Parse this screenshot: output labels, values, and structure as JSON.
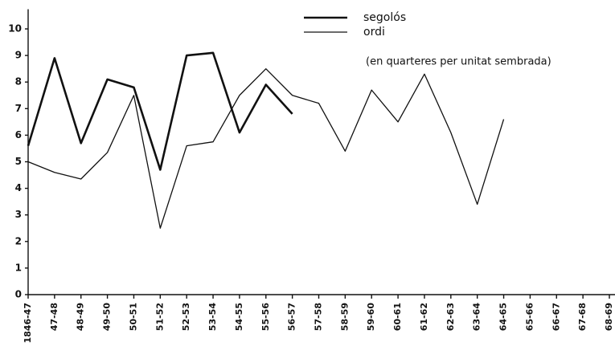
{
  "chart_data": {
    "type": "line",
    "annotation": "(en quarteres per unitat sembrada)",
    "categories": [
      "1846-47",
      "47-48",
      "48-49",
      "49-50",
      "50-51",
      "51-52",
      "52-53",
      "53-54",
      "54-55",
      "55-56",
      "56-57",
      "57-58",
      "58-59",
      "59-60",
      "60-61",
      "61-62",
      "62-63",
      "63-64",
      "64-65",
      "65-66",
      "66-67",
      "67-68",
      "68-69"
    ],
    "series": [
      {
        "name": "segolós",
        "color": "#111111",
        "line_width": 2.6,
        "values": [
          5.6,
          8.9,
          5.7,
          8.1,
          7.8,
          4.7,
          9.0,
          9.1,
          6.1,
          7.9,
          6.8,
          null,
          null,
          null,
          null,
          null,
          null,
          null,
          null,
          null,
          null,
          null,
          null
        ]
      },
      {
        "name": "ordi",
        "color": "#111111",
        "line_width": 1.3,
        "values": [
          5.0,
          4.6,
          4.35,
          5.35,
          7.5,
          2.5,
          5.6,
          5.75,
          7.5,
          8.5,
          7.5,
          7.2,
          5.4,
          7.7,
          6.5,
          8.3,
          6.1,
          3.4,
          6.6,
          null,
          null,
          null,
          null
        ]
      }
    ],
    "ylim": [
      0,
      10.5
    ],
    "yticks": [
      0,
      1,
      2,
      3,
      4,
      5,
      6,
      7,
      8,
      9,
      10
    ],
    "grid": false
  }
}
